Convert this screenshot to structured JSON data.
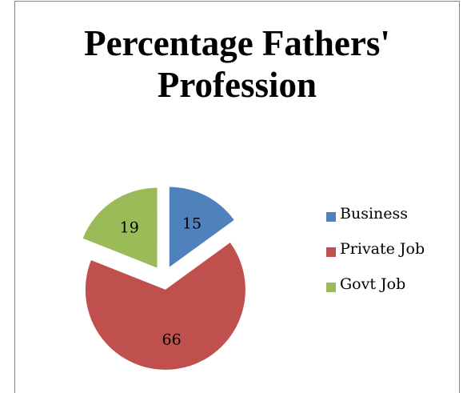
{
  "chart_data": {
    "type": "pie",
    "title_lines": [
      "Percentage Fathers'",
      "Profession"
    ],
    "categories": [
      "Business",
      "Private Job",
      "Govt Job"
    ],
    "values": [
      15,
      66,
      19
    ],
    "colors": [
      "#4F81BD",
      "#C0504D",
      "#9BBB59"
    ],
    "exploded": true,
    "legend_position": "right"
  }
}
